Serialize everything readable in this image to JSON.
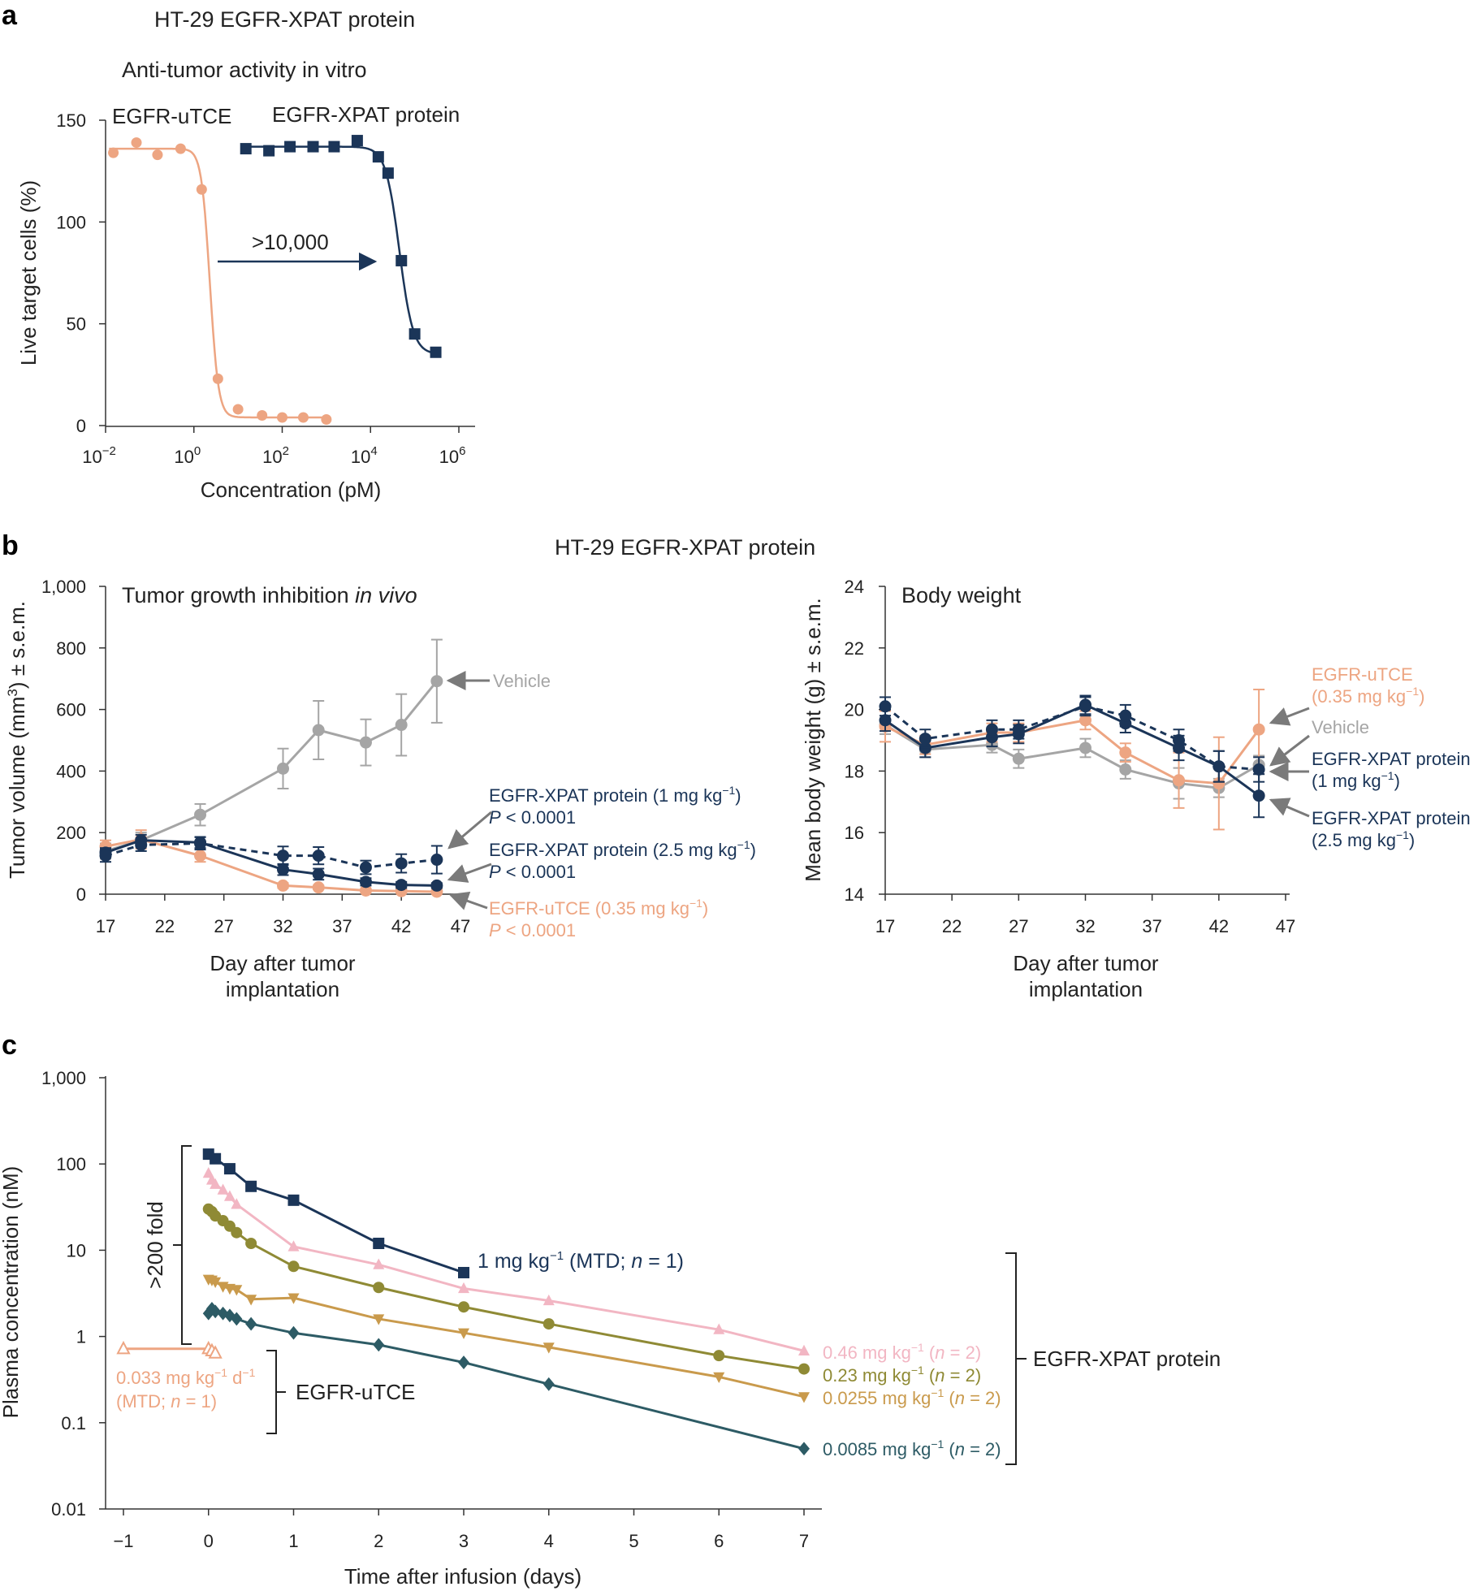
{
  "colors": {
    "navy": "#1b3558",
    "salmon": "#eda582",
    "gray": "#a5a5a5",
    "pink": "#f2b6c3",
    "olive": "#8f8a35",
    "gold": "#c99a4c",
    "teal": "#2d5b65",
    "arrow": "#7a7a7a"
  },
  "panel_a": {
    "label": "a",
    "header": "HT-29 EGFR-XPAT protein",
    "subtitle": "Anti-tumor activity in vitro",
    "xlabel": "Concentration (pM)",
    "ylabel": "Live target cells (%)",
    "series_label_utce": "EGFR-uTCE",
    "series_label_xpat": "EGFR-XPAT protein",
    "arrow_label": ">10,000",
    "xtick_base": "10",
    "xtick_exps": [
      "−2",
      "0",
      "2",
      "4",
      "6"
    ],
    "yticks": [
      "0",
      "50",
      "100",
      "150"
    ]
  },
  "panel_b": {
    "label": "b",
    "header": "HT-29 EGFR-XPAT protein",
    "left_title_prefix": "Tumor growth inhibition ",
    "left_title_italic": "in vivo",
    "left_ylabel_pre": "Tumor volume (mm",
    "left_ylabel_sup": "3",
    "left_ylabel_post": ") ± s.e.m.",
    "xlabel_line1": "Day after tumor",
    "xlabel_line2": "implantation",
    "left_yticks": [
      "0",
      "200",
      "400",
      "600",
      "800",
      "1,000"
    ],
    "xticks": [
      "17",
      "22",
      "27",
      "32",
      "37",
      "42",
      "47"
    ],
    "right_title": "Body weight",
    "right_ylabel": "Mean body weight (g) ± s.e.m.",
    "right_yticks": [
      "14",
      "16",
      "18",
      "20",
      "22",
      "24"
    ],
    "ann_vehicle": "Vehicle",
    "ann_xpat1_name": "EGFR-XPAT protein (1 mg kg",
    "ann_xpat25_name": "EGFR-XPAT protein (2.5 mg kg",
    "ann_utce_name": "EGFR-uTCE (0.35 mg kg",
    "ann_sup": "−1",
    "ann_close": ")",
    "ann_p_italic": "P",
    "ann_p_value": " < 0.0001",
    "r_utce_line1": "EGFR-uTCE",
    "r_utce_line2": "(0.35 mg kg",
    "r_vehicle": "Vehicle",
    "r_xpat1_line1": "EGFR-XPAT protein",
    "r_xpat1_line2": "(1 mg kg",
    "r_xpat25_line1": "EGFR-XPAT protein",
    "r_xpat25_line2": "(2.5 mg kg"
  },
  "panel_c": {
    "label": "c",
    "xlabel": "Time after infusion (days)",
    "ylabel": "Plasma concentration (nM)",
    "yticks": [
      "0.01",
      "0.1",
      "1",
      "10",
      "100",
      "1,000"
    ],
    "xticks": [
      "−1",
      "0",
      "1",
      "2",
      "3",
      "4",
      "5",
      "6",
      "7"
    ],
    "fold_label": ">200 fold",
    "bracket_utce": "EGFR-uTCE",
    "bracket_xpat": "EGFR-XPAT protein",
    "l1_pre": "1 mg kg",
    "l1_sup": "−1",
    "l1_mid": " (MTD; ",
    "l1_n": "n",
    "l1_post": " = 1)",
    "l046_pre": "0.46 mg kg",
    "l023_pre": "0.23 mg kg",
    "l0255_pre": "0.0255 mg kg",
    "l0085_pre": "0.0085 mg kg",
    "l_sup": "−1",
    "l_open": " (",
    "l_n": "n",
    "l_post": " = 2)",
    "lut_pre": "0.033 mg kg",
    "lut_sup1": "−1",
    "lut_mid": " d",
    "lut_sup2": "−1",
    "lut_line2_pre": "(MTD; ",
    "lut_n": "n",
    "lut_post": " = 1)"
  },
  "chart_data": [
    {
      "panel": "a",
      "type": "scatter",
      "title": "Anti-tumor activity in vitro",
      "xlabel": "Concentration (pM)",
      "ylabel": "Live target cells (%)",
      "xscale": "log10",
      "xlim": [
        0.01,
        1000000
      ],
      "ylim": [
        0,
        150
      ],
      "series": [
        {
          "name": "EGFR-uTCE",
          "x": [
            0.015,
            0.05,
            0.15,
            0.5,
            1.5,
            3.5,
            10,
            35,
            100,
            300,
            1000
          ],
          "y": [
            134,
            139,
            133,
            136,
            116,
            23,
            8,
            5,
            4,
            4,
            3
          ],
          "fit": {
            "top": 136,
            "bottom": 4,
            "ic50": 2.3,
            "hill": 4.5
          }
        },
        {
          "name": "EGFR-XPAT protein",
          "x": [
            15,
            50,
            150,
            500,
            1500,
            5000,
            15000,
            25000,
            50000,
            100000,
            300000
          ],
          "y": [
            136,
            135,
            137,
            137,
            137,
            140,
            132,
            124,
            81,
            45,
            36
          ],
          "fit": {
            "top": 137,
            "bottom": 35,
            "ic50": 45000,
            "hill": 2.8
          }
        }
      ]
    },
    {
      "panel": "b-left",
      "type": "line",
      "title": "Tumor growth inhibition in vivo",
      "xlabel": "Day after tumor implantation",
      "ylabel": "Tumor volume (mm3) ± s.e.m.",
      "xlim": [
        17,
        47
      ],
      "ylim": [
        0,
        1000
      ],
      "series": [
        {
          "name": "Vehicle",
          "x": [
            17,
            20,
            25,
            32,
            35,
            39,
            42,
            45
          ],
          "y": [
            140,
            175,
            258,
            408,
            533,
            493,
            550,
            692
          ],
          "err": [
            25,
            25,
            35,
            65,
            95,
            75,
            100,
            135
          ],
          "style": "solid"
        },
        {
          "name": "EGFR-XPAT protein (1 mg kg−1)",
          "x": [
            17,
            20,
            25,
            32,
            35,
            39,
            42,
            45
          ],
          "y": [
            125,
            160,
            165,
            125,
            125,
            87,
            100,
            112
          ],
          "err": [
            20,
            20,
            20,
            30,
            28,
            22,
            30,
            45
          ],
          "style": "dashed"
        },
        {
          "name": "EGFR-XPAT protein (2.5 mg kg−1)",
          "x": [
            17,
            20,
            25,
            32,
            35,
            39,
            42,
            45
          ],
          "y": [
            135,
            175,
            168,
            80,
            65,
            40,
            30,
            28
          ],
          "err": [
            15,
            18,
            18,
            18,
            18,
            12,
            10,
            8
          ],
          "style": "solid"
        },
        {
          "name": "EGFR-uTCE (0.35 mg kg−1)",
          "x": [
            17,
            20,
            25,
            32,
            35,
            39,
            42,
            45
          ],
          "y": [
            155,
            178,
            125,
            28,
            22,
            12,
            10,
            8
          ],
          "err": [
            20,
            30,
            20,
            8,
            6,
            5,
            4,
            3
          ],
          "style": "solid"
        }
      ]
    },
    {
      "panel": "b-right",
      "type": "line",
      "title": "Body weight",
      "xlabel": "Day after tumor implantation",
      "ylabel": "Mean body weight (g) ± s.e.m.",
      "xlim": [
        17,
        47
      ],
      "ylim": [
        14,
        24
      ],
      "series": [
        {
          "name": "Vehicle",
          "x": [
            17,
            20,
            25,
            27,
            32,
            35,
            39,
            42,
            45
          ],
          "y": [
            19.5,
            18.7,
            18.85,
            18.4,
            18.75,
            18.05,
            17.6,
            17.45,
            18.2
          ],
          "err": [
            0.3,
            0.25,
            0.25,
            0.3,
            0.3,
            0.3,
            0.5,
            0.3,
            0.3
          ]
        },
        {
          "name": "EGFR-XPAT protein (1 mg kg−1)",
          "x": [
            17,
            20,
            25,
            27,
            32,
            35,
            39,
            42,
            45
          ],
          "y": [
            20.1,
            19.05,
            19.35,
            19.35,
            20.1,
            19.8,
            19.0,
            18.15,
            18.05
          ],
          "err": [
            0.3,
            0.3,
            0.3,
            0.3,
            0.3,
            0.35,
            0.35,
            0.5,
            0.4
          ],
          "style": "dashed"
        },
        {
          "name": "EGFR-XPAT protein (2.5 mg kg−1)",
          "x": [
            17,
            20,
            25,
            27,
            32,
            35,
            39,
            42,
            45
          ],
          "y": [
            19.65,
            18.75,
            19.1,
            19.2,
            20.15,
            19.55,
            18.75,
            18.15,
            17.2
          ],
          "err": [
            0.35,
            0.3,
            0.3,
            0.3,
            0.3,
            0.3,
            0.4,
            0.5,
            0.7
          ],
          "style": "solid"
        },
        {
          "name": "EGFR-uTCE (0.35 mg kg−1)",
          "x": [
            17,
            20,
            25,
            27,
            32,
            35,
            39,
            42,
            45
          ],
          "y": [
            19.45,
            18.85,
            19.25,
            19.25,
            19.65,
            18.6,
            17.7,
            17.6,
            19.35
          ],
          "err": [
            0.5,
            0.3,
            0.3,
            0.3,
            0.3,
            0.3,
            0.9,
            1.5,
            1.3
          ],
          "style": "solid"
        }
      ]
    },
    {
      "panel": "c",
      "type": "line",
      "xlabel": "Time after infusion (days)",
      "ylabel": "Plasma concentration (nM)",
      "yscale": "log10",
      "xlim": [
        -1.25,
        7.2
      ],
      "ylim": [
        0.01,
        1000
      ],
      "series": [
        {
          "name": "1 mg kg−1 (MTD; n = 1)",
          "marker": "square",
          "x": [
            0,
            0.08,
            0.25,
            0.5,
            1,
            2,
            3
          ],
          "y": [
            130,
            115,
            88,
            55,
            38,
            12,
            5.5
          ]
        },
        {
          "name": "0.46 mg kg−1 (n = 2)",
          "marker": "triangle",
          "x": [
            0,
            0.04,
            0.08,
            0.17,
            0.25,
            0.33,
            1,
            2,
            3,
            4,
            6,
            7
          ],
          "y": [
            78,
            65,
            58,
            50,
            42,
            34,
            11,
            6.8,
            3.6,
            2.6,
            1.2,
            0.68
          ]
        },
        {
          "name": "0.23 mg kg−1 (n = 2)",
          "marker": "circle",
          "x": [
            0,
            0.04,
            0.08,
            0.17,
            0.25,
            0.33,
            0.5,
            1,
            2,
            3,
            4,
            6,
            7
          ],
          "y": [
            30,
            28,
            25,
            22,
            19,
            16,
            12,
            6.5,
            3.7,
            2.2,
            1.4,
            0.6,
            0.42
          ]
        },
        {
          "name": "0.0255 mg kg−1 (n = 2)",
          "marker": "triangle-down",
          "x": [
            0,
            0.04,
            0.08,
            0.17,
            0.25,
            0.33,
            0.5,
            1,
            2,
            3,
            4,
            6,
            7
          ],
          "y": [
            4.6,
            4.5,
            4.3,
            3.8,
            3.6,
            3.5,
            2.7,
            2.8,
            1.6,
            1.1,
            0.75,
            0.34,
            0.2
          ]
        },
        {
          "name": "0.0085 mg kg−1 (n = 2)",
          "marker": "diamond",
          "x": [
            0,
            0.04,
            0.08,
            0.17,
            0.25,
            0.33,
            0.5,
            1,
            2,
            3,
            4,
            7
          ],
          "y": [
            1.85,
            2.1,
            1.95,
            1.85,
            1.75,
            1.6,
            1.4,
            1.1,
            0.8,
            0.5,
            0.28,
            0.05
          ]
        },
        {
          "name": "EGFR-uTCE 0.033 mg kg−1 d−1 (MTD; n = 1)",
          "marker": "triangle-open",
          "x": [
            -1,
            0,
            0.04,
            0.08
          ],
          "y": [
            0.72,
            0.72,
            0.68,
            0.64
          ]
        }
      ]
    }
  ]
}
